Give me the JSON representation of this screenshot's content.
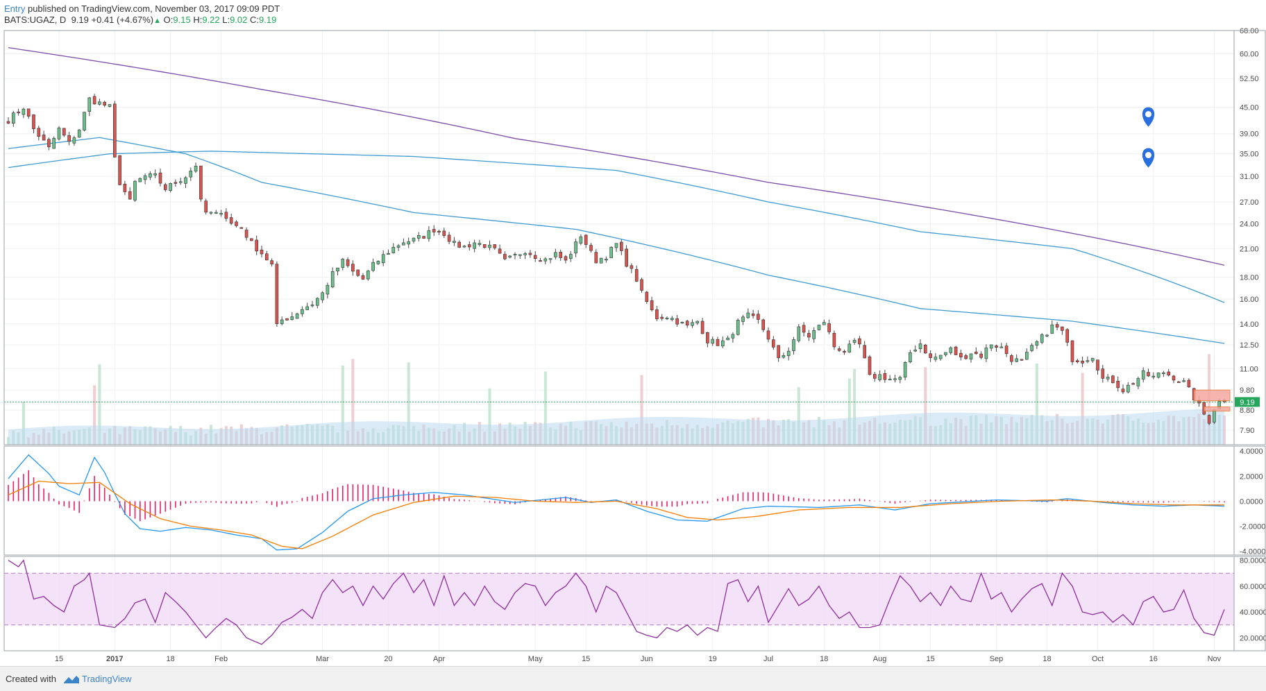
{
  "header": {
    "author": "Entry",
    "published": "published on TradingView.com, November 03, 2017 09:09 PDT",
    "symbol": "BATS:UGAZ, D",
    "last": "9.19",
    "change": "+0.41 (+4.67%)",
    "open_label": "O:",
    "open": "9.15",
    "high_label": "H:",
    "high": "9.22",
    "low_label": "L:",
    "low": "9.02",
    "close_label": "C:",
    "close": "9.19"
  },
  "footer": {
    "created_with": "Created with",
    "brand": "TradingView"
  },
  "colors": {
    "bull": "#26a65b",
    "bear": "#c0392b",
    "ma_short": "#3d9ad1",
    "ma_long": "#7b4aa8",
    "macd": "#2196f3",
    "signal": "#f57c00",
    "histogram": "#e91e63",
    "rsi": "#8e2d9e",
    "rsi_band": "#f0d8f7"
  },
  "icons": [
    "map-pin-icon",
    "map-pin-icon",
    "tradingview-logo-icon"
  ],
  "chart_data": {
    "type": "candlestick",
    "price_axis": {
      "scale": "log",
      "range": [
        7.3,
        68
      ],
      "ticks": [
        "68.00",
        "60.00",
        "52.50",
        "45.00",
        "39.00",
        "35.00",
        "31.00",
        "27.00",
        "24.00",
        "21.00",
        "18.00",
        "16.00",
        "14.00",
        "12.50",
        "11.00",
        "9.80",
        "8.80",
        "7.90"
      ],
      "last_price_label": "9.19",
      "last_price": 9.19
    },
    "x_axis": {
      "labels": [
        "15",
        "2017",
        "18",
        "Feb",
        "Mar",
        "20",
        "Apr",
        "May",
        "15",
        "Jun",
        "19",
        "Jul",
        "18",
        "Aug",
        "15",
        "Sep",
        "18",
        "Oct",
        "16",
        "Nov"
      ],
      "label_bars": [
        10,
        21,
        32,
        42,
        62,
        75,
        85,
        104,
        114,
        126,
        139,
        150,
        161,
        172,
        182,
        195,
        205,
        215,
        226,
        238
      ]
    },
    "close_anchors": [
      [
        0,
        42
      ],
      [
        3,
        45
      ],
      [
        5,
        40
      ],
      [
        8,
        36
      ],
      [
        10,
        40
      ],
      [
        12,
        37
      ],
      [
        14,
        40
      ],
      [
        16,
        47
      ],
      [
        18,
        46
      ],
      [
        20,
        45
      ],
      [
        21,
        34
      ],
      [
        22,
        30
      ],
      [
        24,
        27
      ],
      [
        25,
        30
      ],
      [
        27,
        31
      ],
      [
        29,
        31
      ],
      [
        31,
        29
      ],
      [
        33,
        30
      ],
      [
        35,
        31
      ],
      [
        37,
        33
      ],
      [
        38,
        27
      ],
      [
        39,
        25.5
      ],
      [
        41,
        25.2
      ],
      [
        42,
        25.8
      ],
      [
        44,
        24
      ],
      [
        46,
        23.5
      ],
      [
        48,
        21.6
      ],
      [
        50,
        20.5
      ],
      [
        52,
        19.2
      ],
      [
        53,
        13.8
      ],
      [
        54,
        14.3
      ],
      [
        56,
        14.6
      ],
      [
        58,
        15.2
      ],
      [
        60,
        15.6
      ],
      [
        62,
        16.5
      ],
      [
        64,
        18.3
      ],
      [
        66,
        19.6
      ],
      [
        68,
        18.5
      ],
      [
        70,
        17.8
      ],
      [
        72,
        19.2
      ],
      [
        74,
        20.2
      ],
      [
        76,
        21.1
      ],
      [
        78,
        21.8
      ],
      [
        80,
        22
      ],
      [
        82,
        22.5
      ],
      [
        84,
        23.3
      ],
      [
        86,
        22.8
      ],
      [
        88,
        21.5
      ],
      [
        90,
        21.2
      ],
      [
        92,
        21.7
      ],
      [
        94,
        21.4
      ],
      [
        96,
        20.8
      ],
      [
        98,
        19.6
      ],
      [
        100,
        20.2
      ],
      [
        102,
        20.8
      ],
      [
        104,
        20.2
      ],
      [
        106,
        19.8
      ],
      [
        108,
        20.4
      ],
      [
        110,
        19.6
      ],
      [
        112,
        21.5
      ],
      [
        113,
        22.6
      ],
      [
        115,
        20.5
      ],
      [
        116,
        19.7
      ],
      [
        118,
        20.2
      ],
      [
        120,
        21.5
      ],
      [
        122,
        19.4
      ],
      [
        124,
        17.8
      ],
      [
        125,
        16.5
      ],
      [
        127,
        15
      ],
      [
        128,
        14.5
      ],
      [
        130,
        14.6
      ],
      [
        132,
        14.2
      ],
      [
        134,
        13.8
      ],
      [
        136,
        14.2
      ],
      [
        138,
        12.8
      ],
      [
        140,
        12.6
      ],
      [
        142,
        12.8
      ],
      [
        144,
        14.1
      ],
      [
        146,
        14.6
      ],
      [
        148,
        14.2
      ],
      [
        150,
        13
      ],
      [
        152,
        11.5
      ],
      [
        154,
        12.2
      ],
      [
        156,
        13.6
      ],
      [
        158,
        13.1
      ],
      [
        160,
        13.8
      ],
      [
        161,
        14.2
      ],
      [
        163,
        12.4
      ],
      [
        165,
        12.1
      ],
      [
        167,
        12.6
      ],
      [
        168,
        12.5
      ],
      [
        170,
        10.5
      ],
      [
        172,
        10.6
      ],
      [
        174,
        10.4
      ],
      [
        176,
        10.4
      ],
      [
        178,
        12
      ],
      [
        180,
        12.6
      ],
      [
        182,
        11.6
      ],
      [
        184,
        11.8
      ],
      [
        186,
        12.2
      ],
      [
        188,
        11.6
      ],
      [
        190,
        12
      ],
      [
        192,
        11.8
      ],
      [
        194,
        12.6
      ],
      [
        196,
        12.3
      ],
      [
        198,
        11.6
      ],
      [
        200,
        11.4
      ],
      [
        202,
        12.3
      ],
      [
        204,
        13
      ],
      [
        206,
        13.8
      ],
      [
        207,
        13.7
      ],
      [
        208,
        13.4
      ],
      [
        210,
        11.6
      ],
      [
        212,
        11.5
      ],
      [
        214,
        11.8
      ],
      [
        216,
        10.4
      ],
      [
        218,
        10.3
      ],
      [
        220,
        9.8
      ],
      [
        222,
        10.2
      ],
      [
        224,
        10.7
      ],
      [
        226,
        10.5
      ],
      [
        228,
        10.8
      ],
      [
        230,
        10.5
      ],
      [
        232,
        10.2
      ],
      [
        234,
        9.4
      ],
      [
        236,
        8.6
      ],
      [
        237,
        8.3
      ],
      [
        238,
        8.9
      ],
      [
        239,
        9.19
      ]
    ],
    "moving_averages": [
      {
        "color": "#7b4aa8",
        "points": [
          [
            0,
            62
          ],
          [
            50,
            49.5
          ],
          [
            100,
            38
          ],
          [
            150,
            30
          ],
          [
            200,
            24
          ],
          [
            240,
            19.2
          ]
        ]
      },
      {
        "color": "#3d9ad1",
        "points": [
          [
            0,
            32.5
          ],
          [
            20,
            35
          ],
          [
            40,
            35.5
          ],
          [
            80,
            34.5
          ],
          [
            120,
            32
          ],
          [
            150,
            27
          ],
          [
            180,
            23
          ],
          [
            210,
            21
          ],
          [
            240,
            15.7
          ]
        ]
      },
      {
        "color": "#3d9ad1",
        "points": [
          [
            0,
            36
          ],
          [
            18,
            38.2
          ],
          [
            35,
            35
          ],
          [
            50,
            30
          ],
          [
            80,
            25.5
          ],
          [
            112,
            23.3
          ],
          [
            150,
            18.2
          ],
          [
            180,
            15.2
          ],
          [
            210,
            14.2
          ],
          [
            240,
            12.6
          ]
        ]
      }
    ],
    "macd": {
      "range": [
        -4.3,
        4.4
      ],
      "ticks": [
        "4.0000",
        "2.0000",
        "0.0000",
        "-2.0000",
        "-4.0000"
      ],
      "macd_line": [
        [
          0,
          1.8
        ],
        [
          4,
          3.7
        ],
        [
          8,
          2.2
        ],
        [
          10,
          1.2
        ],
        [
          14,
          0.5
        ],
        [
          17,
          3.5
        ],
        [
          19,
          2.3
        ],
        [
          21,
          0.6
        ],
        [
          23,
          -1
        ],
        [
          26,
          -2.2
        ],
        [
          30,
          -2.4
        ],
        [
          35,
          -2.1
        ],
        [
          40,
          -2.3
        ],
        [
          45,
          -2.7
        ],
        [
          50,
          -3
        ],
        [
          53,
          -3.9
        ],
        [
          57,
          -3.8
        ],
        [
          62,
          -2.5
        ],
        [
          67,
          -0.8
        ],
        [
          72,
          0.2
        ],
        [
          78,
          0.5
        ],
        [
          84,
          0.7
        ],
        [
          90,
          0.5
        ],
        [
          100,
          -0.1
        ],
        [
          110,
          0.3
        ],
        [
          115,
          -0.1
        ],
        [
          120,
          0.1
        ],
        [
          126,
          -0.8
        ],
        [
          132,
          -1.5
        ],
        [
          138,
          -1.6
        ],
        [
          145,
          -0.6
        ],
        [
          150,
          -0.4
        ],
        [
          160,
          -0.5
        ],
        [
          168,
          -0.3
        ],
        [
          175,
          -0.7
        ],
        [
          182,
          -0.2
        ],
        [
          195,
          0.1
        ],
        [
          205,
          0
        ],
        [
          209,
          0.2
        ],
        [
          216,
          -0.1
        ],
        [
          222,
          -0.3
        ],
        [
          228,
          -0.4
        ],
        [
          234,
          -0.3
        ],
        [
          240,
          -0.4
        ]
      ],
      "signal_line": [
        [
          0,
          0.5
        ],
        [
          6,
          1.6
        ],
        [
          12,
          1.4
        ],
        [
          18,
          1.5
        ],
        [
          24,
          -0.2
        ],
        [
          30,
          -1.4
        ],
        [
          36,
          -2
        ],
        [
          42,
          -2.3
        ],
        [
          48,
          -2.7
        ],
        [
          54,
          -3.6
        ],
        [
          58,
          -3.8
        ],
        [
          64,
          -2.8
        ],
        [
          72,
          -1.1
        ],
        [
          80,
          -0.1
        ],
        [
          88,
          0.4
        ],
        [
          96,
          0.3
        ],
        [
          104,
          0
        ],
        [
          112,
          -0.1
        ],
        [
          120,
          0
        ],
        [
          128,
          -0.6
        ],
        [
          134,
          -1.3
        ],
        [
          140,
          -1.5
        ],
        [
          148,
          -1.2
        ],
        [
          156,
          -0.7
        ],
        [
          166,
          -0.5
        ],
        [
          176,
          -0.5
        ],
        [
          186,
          -0.2
        ],
        [
          196,
          0
        ],
        [
          206,
          0.1
        ],
        [
          214,
          0
        ],
        [
          222,
          -0.2
        ],
        [
          230,
          -0.3
        ],
        [
          240,
          -0.3
        ]
      ]
    },
    "rsi": {
      "range": [
        10,
        83
      ],
      "ticks": [
        "80.0000",
        "60.0000",
        "40.0000",
        "20.0000"
      ],
      "overbought": 70,
      "oversold": 30,
      "values": [
        [
          0,
          80
        ],
        [
          2,
          75
        ],
        [
          3,
          80
        ],
        [
          5,
          50
        ],
        [
          7,
          52
        ],
        [
          9,
          45
        ],
        [
          11,
          40
        ],
        [
          13,
          60
        ],
        [
          15,
          65
        ],
        [
          16,
          70
        ],
        [
          18,
          30
        ],
        [
          21,
          28
        ],
        [
          23,
          35
        ],
        [
          25,
          47
        ],
        [
          27,
          50
        ],
        [
          29,
          32
        ],
        [
          31,
          55
        ],
        [
          33,
          48
        ],
        [
          35,
          40
        ],
        [
          37,
          30
        ],
        [
          39,
          20
        ],
        [
          41,
          28
        ],
        [
          43,
          35
        ],
        [
          45,
          30
        ],
        [
          47,
          20
        ],
        [
          50,
          15
        ],
        [
          52,
          22
        ],
        [
          54,
          32
        ],
        [
          56,
          36
        ],
        [
          58,
          42
        ],
        [
          60,
          35
        ],
        [
          62,
          55
        ],
        [
          64,
          65
        ],
        [
          66,
          55
        ],
        [
          68,
          60
        ],
        [
          70,
          45
        ],
        [
          72,
          60
        ],
        [
          74,
          50
        ],
        [
          76,
          62
        ],
        [
          78,
          70
        ],
        [
          80,
          55
        ],
        [
          82,
          65
        ],
        [
          84,
          45
        ],
        [
          86,
          68
        ],
        [
          88,
          45
        ],
        [
          90,
          55
        ],
        [
          92,
          45
        ],
        [
          94,
          60
        ],
        [
          96,
          48
        ],
        [
          98,
          42
        ],
        [
          100,
          55
        ],
        [
          102,
          62
        ],
        [
          104,
          60
        ],
        [
          106,
          45
        ],
        [
          108,
          55
        ],
        [
          110,
          60
        ],
        [
          112,
          70
        ],
        [
          114,
          60
        ],
        [
          116,
          40
        ],
        [
          118,
          60
        ],
        [
          120,
          55
        ],
        [
          122,
          40
        ],
        [
          124,
          25
        ],
        [
          126,
          22
        ],
        [
          128,
          20
        ],
        [
          130,
          28
        ],
        [
          132,
          25
        ],
        [
          134,
          30
        ],
        [
          136,
          22
        ],
        [
          138,
          28
        ],
        [
          140,
          25
        ],
        [
          142,
          62
        ],
        [
          144,
          65
        ],
        [
          146,
          48
        ],
        [
          148,
          60
        ],
        [
          150,
          32
        ],
        [
          152,
          45
        ],
        [
          154,
          58
        ],
        [
          156,
          45
        ],
        [
          158,
          50
        ],
        [
          160,
          60
        ],
        [
          162,
          45
        ],
        [
          164,
          35
        ],
        [
          166,
          40
        ],
        [
          168,
          28
        ],
        [
          170,
          28
        ],
        [
          172,
          30
        ],
        [
          174,
          50
        ],
        [
          176,
          68
        ],
        [
          178,
          60
        ],
        [
          180,
          48
        ],
        [
          182,
          55
        ],
        [
          184,
          45
        ],
        [
          186,
          60
        ],
        [
          188,
          50
        ],
        [
          190,
          48
        ],
        [
          192,
          70
        ],
        [
          194,
          50
        ],
        [
          196,
          55
        ],
        [
          198,
          40
        ],
        [
          200,
          50
        ],
        [
          202,
          58
        ],
        [
          204,
          62
        ],
        [
          206,
          45
        ],
        [
          208,
          70
        ],
        [
          210,
          60
        ],
        [
          212,
          40
        ],
        [
          214,
          38
        ],
        [
          216,
          40
        ],
        [
          218,
          32
        ],
        [
          220,
          38
        ],
        [
          222,
          30
        ],
        [
          224,
          48
        ],
        [
          226,
          52
        ],
        [
          228,
          40
        ],
        [
          230,
          42
        ],
        [
          232,
          57
        ],
        [
          234,
          35
        ],
        [
          236,
          24
        ],
        [
          238,
          22
        ],
        [
          240,
          42
        ]
      ]
    },
    "last_bar_index": 240
  }
}
